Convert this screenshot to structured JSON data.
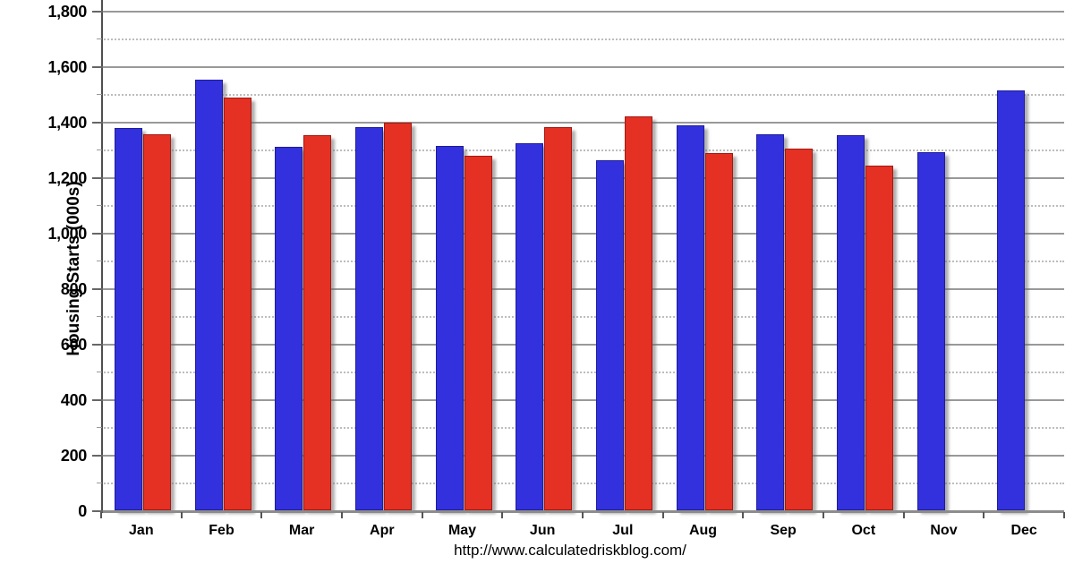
{
  "page": {
    "background": "#ffffff",
    "footer_url": "http://www.calculatedriskblog.com/"
  },
  "chart_data": {
    "type": "bar",
    "title": "",
    "xlabel": "",
    "ylabel": "Housing Starts (000s)",
    "categories": [
      "Jan",
      "Feb",
      "Mar",
      "Apr",
      "May",
      "Jun",
      "Jul",
      "Aug",
      "Sep",
      "Oct",
      "Nov",
      "Dec"
    ],
    "series": [
      {
        "name": "blue",
        "color": "#3231dd",
        "border_color": "#1f1d99",
        "values": [
          1378,
          1552,
          1310,
          1383,
          1316,
          1324,
          1262,
          1388,
          1356,
          1352,
          1293,
          1515
        ]
      },
      {
        "name": "red",
        "color": "#e53024",
        "border_color": "#a21911",
        "values": [
          1356,
          1490,
          1353,
          1398,
          1280,
          1381,
          1420,
          1290,
          1305,
          1244,
          null,
          null
        ]
      }
    ],
    "ylim": [
      0,
      1840
    ],
    "yticks": [
      0,
      200,
      400,
      600,
      800,
      1000,
      1200,
      1400,
      1600,
      1800
    ],
    "ytick_labels": [
      "0",
      "200",
      "400",
      "600",
      "800",
      "1,000",
      "1,200",
      "1,400",
      "1,600",
      "1,800"
    ],
    "yticks_minor": [
      100,
      300,
      500,
      700,
      900,
      1100,
      1300,
      1500,
      1700
    ],
    "grid": {
      "major": "solid",
      "minor": "dotted"
    },
    "legend": "none",
    "grid_color_major": "#999999",
    "grid_color_minor": "#bdbdbd",
    "axis_color": "#4f4f4f"
  }
}
